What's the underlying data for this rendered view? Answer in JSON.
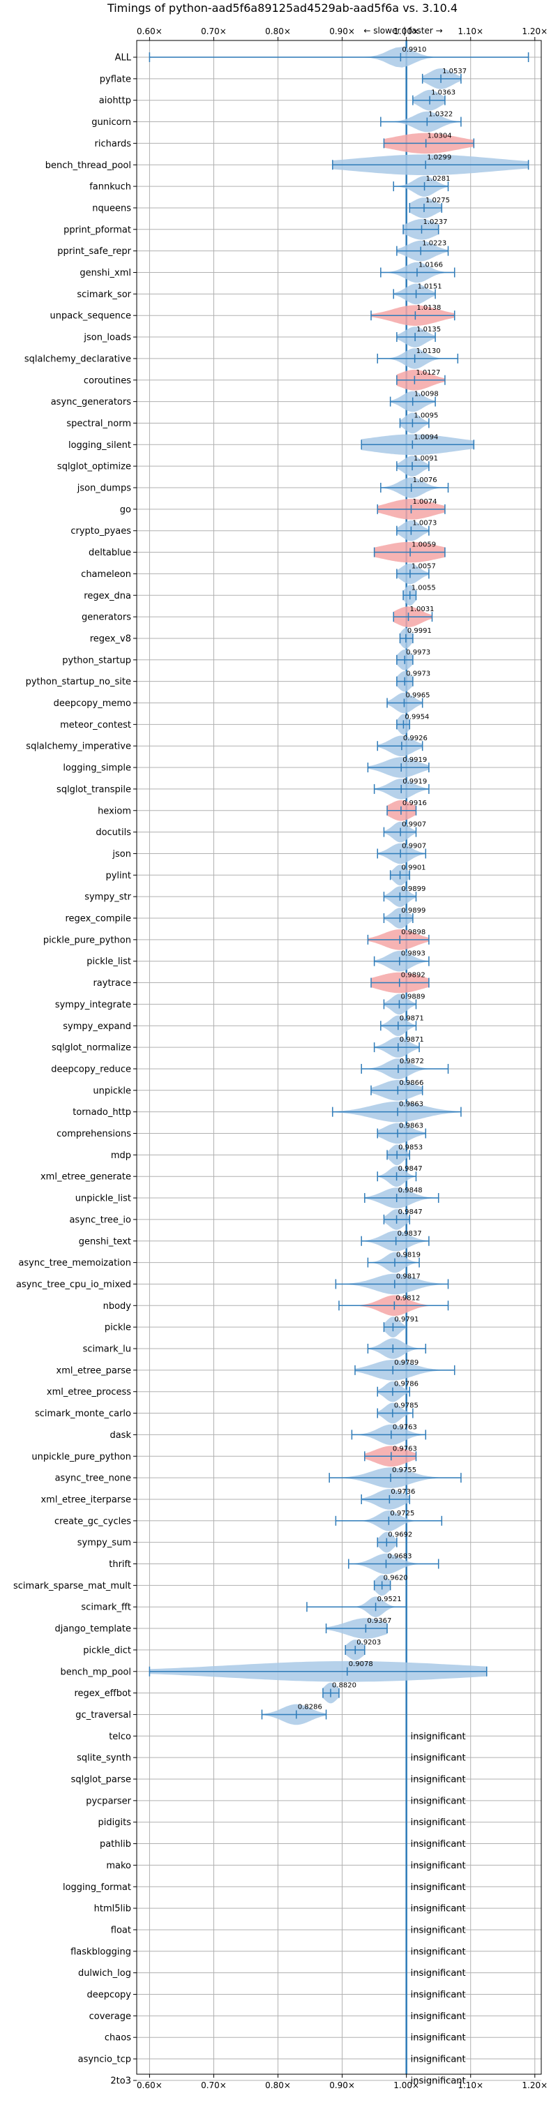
{
  "chart_data": {
    "type": "violin",
    "title": "Timings of python-aad5f6a89125ad4529ab-aad5f6a vs. 3.10.4",
    "subtitle": "← slower | faster →",
    "xlabel": "",
    "ylabel": "",
    "xlim": [
      0.58,
      1.21
    ],
    "xticks": [
      0.6,
      0.7,
      0.8,
      0.9,
      1.0,
      1.1,
      1.2
    ],
    "xtick_labels": [
      "0.60×",
      "0.70×",
      "0.80×",
      "0.90×",
      "1.00×",
      "1.10×",
      "1.20×"
    ],
    "grid": true,
    "reference_line": 1.0,
    "colors": {
      "violin": "#a9c9e6",
      "highlight": "#f4a6a6",
      "line": "#2e7bb8",
      "grid": "#b0b0b0"
    },
    "insignificant_label": "insignificant",
    "benchmarks": [
      {
        "name": "ALL",
        "value": 0.991,
        "label": "0.9910",
        "min": 0.6,
        "max": 1.19,
        "spread": 0.02,
        "highlight": false
      },
      {
        "name": "pyflate",
        "value": 1.0537,
        "label": "1.0537",
        "min": 1.025,
        "max": 1.085,
        "spread": 0.018,
        "highlight": false
      },
      {
        "name": "aiohttp",
        "value": 1.0363,
        "label": "1.0363",
        "min": 1.01,
        "max": 1.06,
        "spread": 0.016,
        "highlight": false
      },
      {
        "name": "gunicorn",
        "value": 1.0322,
        "label": "1.0322",
        "min": 0.96,
        "max": 1.085,
        "spread": 0.02,
        "highlight": false
      },
      {
        "name": "richards",
        "value": 1.0304,
        "label": "1.0304",
        "min": 0.965,
        "max": 1.105,
        "spread": 0.05,
        "highlight": true
      },
      {
        "name": "bench_thread_pool",
        "value": 1.0299,
        "label": "1.0299",
        "min": 0.885,
        "max": 1.19,
        "spread": 0.11,
        "highlight": false
      },
      {
        "name": "fannkuch",
        "value": 1.0281,
        "label": "1.0281",
        "min": 0.98,
        "max": 1.065,
        "spread": 0.016,
        "highlight": false
      },
      {
        "name": "nqueens",
        "value": 1.0275,
        "label": "1.0275",
        "min": 1.005,
        "max": 1.055,
        "spread": 0.018,
        "highlight": false
      },
      {
        "name": "pprint_pformat",
        "value": 1.0237,
        "label": "1.0237",
        "min": 0.995,
        "max": 1.05,
        "spread": 0.022,
        "highlight": false
      },
      {
        "name": "pprint_safe_repr",
        "value": 1.0223,
        "label": "1.0223",
        "min": 0.985,
        "max": 1.065,
        "spread": 0.02,
        "highlight": false
      },
      {
        "name": "genshi_xml",
        "value": 1.0166,
        "label": "1.0166",
        "min": 0.96,
        "max": 1.075,
        "spread": 0.018,
        "highlight": false
      },
      {
        "name": "scimark_sor",
        "value": 1.0151,
        "label": "1.0151",
        "min": 0.98,
        "max": 1.045,
        "spread": 0.016,
        "highlight": false
      },
      {
        "name": "unpack_sequence",
        "value": 1.0138,
        "label": "1.0138",
        "min": 0.945,
        "max": 1.075,
        "spread": 0.035,
        "highlight": true
      },
      {
        "name": "json_loads",
        "value": 1.0135,
        "label": "1.0135",
        "min": 0.985,
        "max": 1.045,
        "spread": 0.016,
        "highlight": false
      },
      {
        "name": "sqlalchemy_declarative",
        "value": 1.013,
        "label": "1.0130",
        "min": 0.955,
        "max": 1.08,
        "spread": 0.016,
        "highlight": false
      },
      {
        "name": "coroutines",
        "value": 1.0127,
        "label": "1.0127",
        "min": 0.985,
        "max": 1.06,
        "spread": 0.025,
        "highlight": true
      },
      {
        "name": "async_generators",
        "value": 1.0098,
        "label": "1.0098",
        "min": 0.975,
        "max": 1.045,
        "spread": 0.016,
        "highlight": false
      },
      {
        "name": "spectral_norm",
        "value": 1.0095,
        "label": "1.0095",
        "min": 0.99,
        "max": 1.035,
        "spread": 0.012,
        "highlight": false
      },
      {
        "name": "logging_silent",
        "value": 1.0094,
        "label": "1.0094",
        "min": 0.93,
        "max": 1.105,
        "spread": 0.07,
        "highlight": false
      },
      {
        "name": "sqlglot_optimize",
        "value": 1.0091,
        "label": "1.0091",
        "min": 0.985,
        "max": 1.035,
        "spread": 0.014,
        "highlight": false
      },
      {
        "name": "json_dumps",
        "value": 1.0076,
        "label": "1.0076",
        "min": 0.96,
        "max": 1.065,
        "spread": 0.018,
        "highlight": false
      },
      {
        "name": "go",
        "value": 1.0074,
        "label": "1.0074",
        "min": 0.955,
        "max": 1.06,
        "spread": 0.035,
        "highlight": true
      },
      {
        "name": "crypto_pyaes",
        "value": 1.0073,
        "label": "1.0073",
        "min": 0.985,
        "max": 1.035,
        "spread": 0.014,
        "highlight": false
      },
      {
        "name": "deltablue",
        "value": 1.0059,
        "label": "1.0059",
        "min": 0.95,
        "max": 1.06,
        "spread": 0.045,
        "highlight": true
      },
      {
        "name": "chameleon",
        "value": 1.0057,
        "label": "1.0057",
        "min": 0.985,
        "max": 1.035,
        "spread": 0.014,
        "highlight": false
      },
      {
        "name": "regex_dna",
        "value": 1.0055,
        "label": "1.0055",
        "min": 0.995,
        "max": 1.015,
        "spread": 0.008,
        "highlight": false
      },
      {
        "name": "generators",
        "value": 1.0031,
        "label": "1.0031",
        "min": 0.98,
        "max": 1.04,
        "spread": 0.02,
        "highlight": true
      },
      {
        "name": "regex_v8",
        "value": 0.9991,
        "label": "0.9991",
        "min": 0.99,
        "max": 1.01,
        "spread": 0.008,
        "highlight": false
      },
      {
        "name": "python_startup",
        "value": 0.9973,
        "label": "0.9973",
        "min": 0.985,
        "max": 1.01,
        "spread": 0.01,
        "highlight": false
      },
      {
        "name": "python_startup_no_site",
        "value": 0.9973,
        "label": "0.9973",
        "min": 0.985,
        "max": 1.01,
        "spread": 0.01,
        "highlight": false
      },
      {
        "name": "deepcopy_memo",
        "value": 0.9965,
        "label": "0.9965",
        "min": 0.97,
        "max": 1.025,
        "spread": 0.014,
        "highlight": false
      },
      {
        "name": "meteor_contest",
        "value": 0.9954,
        "label": "0.9954",
        "min": 0.985,
        "max": 1.005,
        "spread": 0.008,
        "highlight": false
      },
      {
        "name": "sqlalchemy_imperative",
        "value": 0.9926,
        "label": "0.9926",
        "min": 0.955,
        "max": 1.025,
        "spread": 0.018,
        "highlight": false
      },
      {
        "name": "logging_simple",
        "value": 0.9919,
        "label": "0.9919",
        "min": 0.94,
        "max": 1.035,
        "spread": 0.025,
        "highlight": false
      },
      {
        "name": "sqlglot_transpile",
        "value": 0.9919,
        "label": "0.9919",
        "min": 0.95,
        "max": 1.035,
        "spread": 0.018,
        "highlight": false
      },
      {
        "name": "hexiom",
        "value": 0.9916,
        "label": "0.9916",
        "min": 0.97,
        "max": 1.015,
        "spread": 0.018,
        "highlight": true
      },
      {
        "name": "docutils",
        "value": 0.9907,
        "label": "0.9907",
        "min": 0.965,
        "max": 1.015,
        "spread": 0.012,
        "highlight": false
      },
      {
        "name": "json",
        "value": 0.9907,
        "label": "0.9907",
        "min": 0.955,
        "max": 1.03,
        "spread": 0.016,
        "highlight": false
      },
      {
        "name": "pylint",
        "value": 0.9901,
        "label": "0.9901",
        "min": 0.975,
        "max": 1.005,
        "spread": 0.01,
        "highlight": false
      },
      {
        "name": "sympy_str",
        "value": 0.9899,
        "label": "0.9899",
        "min": 0.965,
        "max": 1.015,
        "spread": 0.012,
        "highlight": false
      },
      {
        "name": "regex_compile",
        "value": 0.9899,
        "label": "0.9899",
        "min": 0.965,
        "max": 1.01,
        "spread": 0.012,
        "highlight": false
      },
      {
        "name": "pickle_pure_python",
        "value": 0.9898,
        "label": "0.9898",
        "min": 0.94,
        "max": 1.035,
        "spread": 0.025,
        "highlight": true
      },
      {
        "name": "pickle_list",
        "value": 0.9893,
        "label": "0.9893",
        "min": 0.95,
        "max": 1.035,
        "spread": 0.018,
        "highlight": false
      },
      {
        "name": "raytrace",
        "value": 0.9892,
        "label": "0.9892",
        "min": 0.945,
        "max": 1.035,
        "spread": 0.035,
        "highlight": true
      },
      {
        "name": "sympy_integrate",
        "value": 0.9889,
        "label": "0.9889",
        "min": 0.965,
        "max": 1.015,
        "spread": 0.012,
        "highlight": false
      },
      {
        "name": "sympy_expand",
        "value": 0.9871,
        "label": "0.9871",
        "min": 0.96,
        "max": 1.015,
        "spread": 0.012,
        "highlight": false
      },
      {
        "name": "sqlglot_normalize",
        "value": 0.9871,
        "label": "0.9871",
        "min": 0.95,
        "max": 1.02,
        "spread": 0.016,
        "highlight": false
      },
      {
        "name": "deepcopy_reduce",
        "value": 0.9872,
        "label": "0.9872",
        "min": 0.93,
        "max": 1.065,
        "spread": 0.018,
        "highlight": false
      },
      {
        "name": "unpickle",
        "value": 0.9866,
        "label": "0.9866",
        "min": 0.945,
        "max": 1.025,
        "spread": 0.025,
        "highlight": false
      },
      {
        "name": "tornado_http",
        "value": 0.9863,
        "label": "0.9863",
        "min": 0.885,
        "max": 1.085,
        "spread": 0.04,
        "highlight": false
      },
      {
        "name": "comprehensions",
        "value": 0.9863,
        "label": "0.9863",
        "min": 0.955,
        "max": 1.03,
        "spread": 0.02,
        "highlight": false
      },
      {
        "name": "mdp",
        "value": 0.9853,
        "label": "0.9853",
        "min": 0.97,
        "max": 1.005,
        "spread": 0.01,
        "highlight": false
      },
      {
        "name": "xml_etree_generate",
        "value": 0.9847,
        "label": "0.9847",
        "min": 0.955,
        "max": 1.015,
        "spread": 0.012,
        "highlight": false
      },
      {
        "name": "unpickle_list",
        "value": 0.9848,
        "label": "0.9848",
        "min": 0.935,
        "max": 1.05,
        "spread": 0.022,
        "highlight": false
      },
      {
        "name": "async_tree_io",
        "value": 0.9847,
        "label": "0.9847",
        "min": 0.965,
        "max": 1.005,
        "spread": 0.012,
        "highlight": false
      },
      {
        "name": "genshi_text",
        "value": 0.9837,
        "label": "0.9837",
        "min": 0.93,
        "max": 1.035,
        "spread": 0.02,
        "highlight": false
      },
      {
        "name": "async_tree_memoization",
        "value": 0.9819,
        "label": "0.9819",
        "min": 0.94,
        "max": 1.02,
        "spread": 0.014,
        "highlight": false
      },
      {
        "name": "async_tree_cpu_io_mixed",
        "value": 0.9817,
        "label": "0.9817",
        "min": 0.89,
        "max": 1.065,
        "spread": 0.03,
        "highlight": false
      },
      {
        "name": "nbody",
        "value": 0.9812,
        "label": "0.9812",
        "min": 0.895,
        "max": 1.065,
        "spread": 0.022,
        "highlight": true
      },
      {
        "name": "pickle",
        "value": 0.9791,
        "label": "0.9791",
        "min": 0.965,
        "max": 1.0,
        "spread": 0.01,
        "highlight": false
      },
      {
        "name": "scimark_lu",
        "value": 0.979,
        "label": "",
        "min": 0.94,
        "max": 1.03,
        "spread": 0.016,
        "highlight": false
      },
      {
        "name": "xml_etree_parse",
        "value": 0.9789,
        "label": "0.9789",
        "min": 0.92,
        "max": 1.075,
        "spread": 0.03,
        "highlight": false
      },
      {
        "name": "xml_etree_process",
        "value": 0.9786,
        "label": "0.9786",
        "min": 0.955,
        "max": 1.005,
        "spread": 0.012,
        "highlight": false
      },
      {
        "name": "scimark_monte_carlo",
        "value": 0.9785,
        "label": "0.9785",
        "min": 0.955,
        "max": 1.01,
        "spread": 0.012,
        "highlight": false
      },
      {
        "name": "dask",
        "value": 0.9763,
        "label": "0.9763",
        "min": 0.915,
        "max": 1.03,
        "spread": 0.02,
        "highlight": false
      },
      {
        "name": "unpickle_pure_python",
        "value": 0.9763,
        "label": "0.9763",
        "min": 0.935,
        "max": 1.015,
        "spread": 0.025,
        "highlight": true
      },
      {
        "name": "async_tree_none",
        "value": 0.9755,
        "label": "0.9755",
        "min": 0.88,
        "max": 1.085,
        "spread": 0.03,
        "highlight": false
      },
      {
        "name": "xml_etree_iterparse",
        "value": 0.9736,
        "label": "0.9736",
        "min": 0.93,
        "max": 1.005,
        "spread": 0.02,
        "highlight": false
      },
      {
        "name": "create_gc_cycles",
        "value": 0.9725,
        "label": "0.9725",
        "min": 0.89,
        "max": 1.055,
        "spread": 0.016,
        "highlight": false
      },
      {
        "name": "sympy_sum",
        "value": 0.9692,
        "label": "0.9692",
        "min": 0.955,
        "max": 0.985,
        "spread": 0.01,
        "highlight": false
      },
      {
        "name": "thrift",
        "value": 0.9683,
        "label": "0.9683",
        "min": 0.91,
        "max": 1.05,
        "spread": 0.02,
        "highlight": false
      },
      {
        "name": "scimark_sparse_mat_mult",
        "value": 0.962,
        "label": "0.9620",
        "min": 0.95,
        "max": 0.975,
        "spread": 0.01,
        "highlight": false
      },
      {
        "name": "scimark_fft",
        "value": 0.9521,
        "label": "0.9521",
        "min": 0.845,
        "max": 1.0,
        "spread": 0.012,
        "highlight": false
      },
      {
        "name": "django_template",
        "value": 0.9367,
        "label": "0.9367",
        "min": 0.875,
        "max": 0.97,
        "spread": 0.03,
        "highlight": false
      },
      {
        "name": "pickle_dict",
        "value": 0.9203,
        "label": "0.9203",
        "min": 0.905,
        "max": 0.935,
        "spread": 0.012,
        "highlight": false
      },
      {
        "name": "bench_mp_pool",
        "value": 0.9078,
        "label": "0.9078",
        "min": 0.6,
        "max": 1.125,
        "spread": 0.18,
        "highlight": false
      },
      {
        "name": "regex_effbot",
        "value": 0.882,
        "label": "0.8820",
        "min": 0.87,
        "max": 0.895,
        "spread": 0.01,
        "highlight": false
      },
      {
        "name": "gc_traversal",
        "value": 0.8286,
        "label": "0.8286",
        "min": 0.775,
        "max": 0.875,
        "spread": 0.022,
        "highlight": false
      },
      {
        "name": "telco",
        "insignificant": true
      },
      {
        "name": "sqlite_synth",
        "insignificant": true
      },
      {
        "name": "sqlglot_parse",
        "insignificant": true
      },
      {
        "name": "pycparser",
        "insignificant": true
      },
      {
        "name": "pidigits",
        "insignificant": true
      },
      {
        "name": "pathlib",
        "insignificant": true
      },
      {
        "name": "mako",
        "insignificant": true
      },
      {
        "name": "logging_format",
        "insignificant": true
      },
      {
        "name": "html5lib",
        "insignificant": true
      },
      {
        "name": "float",
        "insignificant": true
      },
      {
        "name": "flaskblogging",
        "insignificant": true
      },
      {
        "name": "dulwich_log",
        "insignificant": true
      },
      {
        "name": "deepcopy",
        "insignificant": true
      },
      {
        "name": "coverage",
        "insignificant": true
      },
      {
        "name": "chaos",
        "insignificant": true
      },
      {
        "name": "asyncio_tcp",
        "insignificant": true
      },
      {
        "name": "2to3",
        "insignificant": true
      }
    ]
  }
}
